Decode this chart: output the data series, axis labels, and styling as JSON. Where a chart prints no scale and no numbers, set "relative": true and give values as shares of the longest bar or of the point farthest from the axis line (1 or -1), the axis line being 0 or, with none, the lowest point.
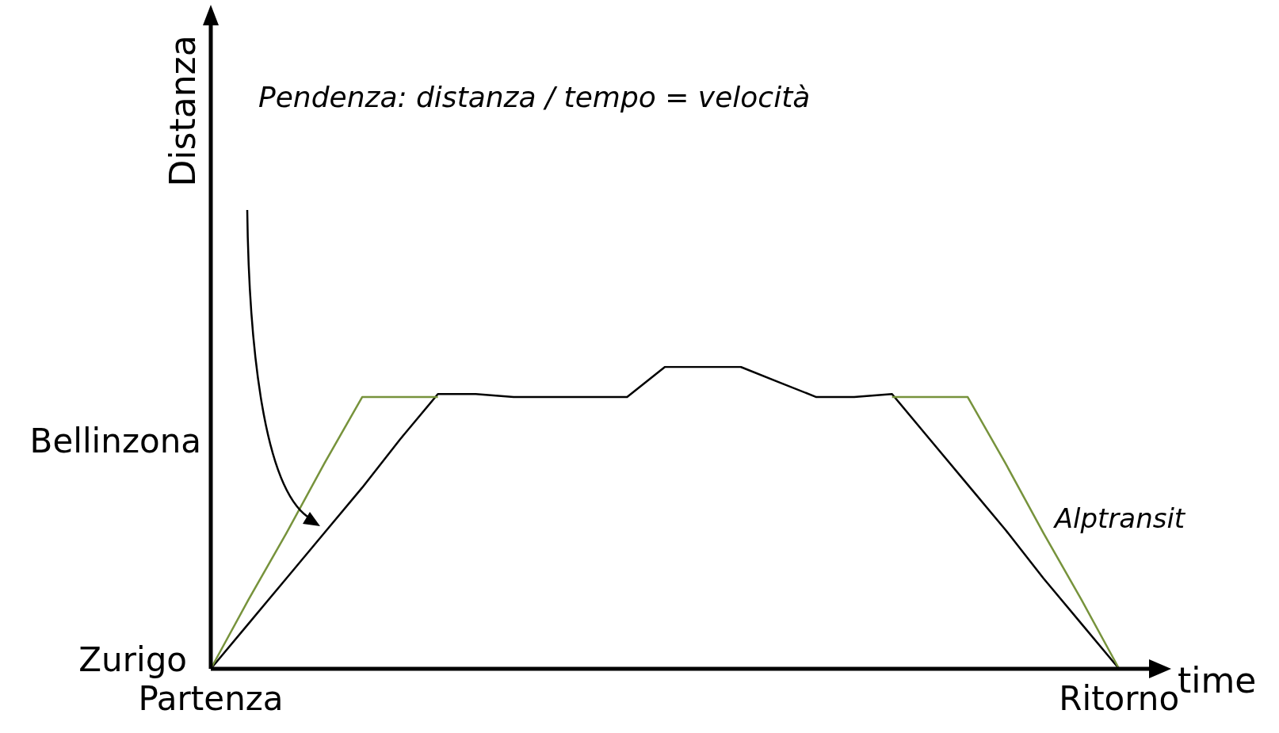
{
  "chart_data": {
    "type": "line",
    "xlabel": "time",
    "relative": true,
    "categories": [
      "Partenza",
      null,
      null,
      null,
      null,
      null,
      null,
      null,
      null,
      null,
      null,
      null,
      null,
      null,
      null,
      null,
      null,
      null,
      null,
      null,
      null,
      null,
      null,
      null,
      "Ritorno",
      null
    ],
    "annotations": [
      "Pendenza: distanza / tempo = velocità",
      "Zurigo",
      "Bellinzona",
      "Distanza"
    ],
    "legend": false,
    "marker": "none",
    "line_style": "solid",
    "series": [
      {
        "color": "#000000",
        "values": [
          0,
          0.15,
          0.3,
          0.45,
          0.6,
          0.76,
          0.91,
          0.91,
          0.9,
          0.9,
          0.9,
          0.9,
          1,
          1,
          1,
          0.95,
          0.9,
          0.9,
          0.91,
          0.76,
          0.61,
          0.46,
          0.3,
          0.15,
          0,
          null
        ]
      },
      {
        "name": "Alptransit",
        "color": "#77933c",
        "values": [
          0,
          0.23,
          0.45,
          0.68,
          0.9,
          0.9,
          0.9,
          null,
          null,
          null,
          null,
          null,
          null,
          null,
          null,
          null,
          null,
          null,
          0.9,
          0.9,
          0.9,
          0.68,
          0.45,
          0.23,
          0,
          null
        ]
      }
    ]
  }
}
